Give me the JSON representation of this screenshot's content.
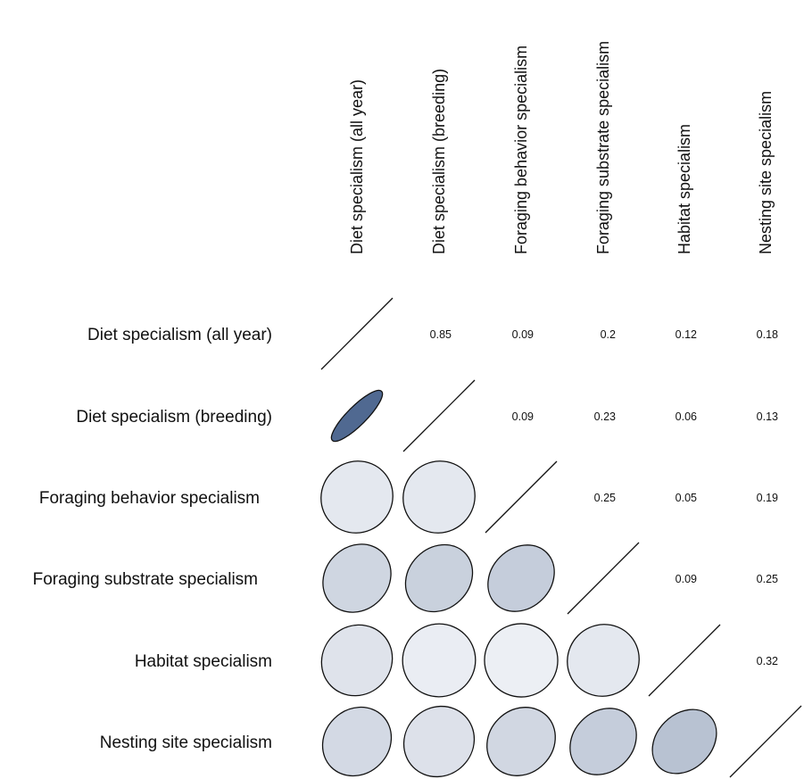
{
  "chart_data": {
    "type": "heatmap",
    "variables": [
      "Diet specialism (all year)",
      "Diet specialism (breeding)",
      "Foraging behavior specialism",
      "Foraging substrate specialism",
      "Habitat specialism",
      "Nesting site specialism"
    ],
    "upper_values": [
      [
        null,
        "0.85",
        "0.09",
        "0.2",
        "0.12",
        "0.18"
      ],
      [
        null,
        null,
        "0.09",
        "0.23",
        "0.06",
        "0.13"
      ],
      [
        null,
        null,
        null,
        "0.25",
        "0.05",
        "0.19"
      ],
      [
        null,
        null,
        null,
        null,
        "0.09",
        "0.25"
      ],
      [
        null,
        null,
        null,
        null,
        null,
        "0.32"
      ],
      [
        null,
        null,
        null,
        null,
        null,
        null
      ]
    ],
    "correlations": [
      [
        1,
        0.85,
        0.09,
        0.2,
        0.12,
        0.18
      ],
      [
        0.85,
        1,
        0.09,
        0.23,
        0.06,
        0.13
      ],
      [
        0.09,
        0.09,
        1,
        0.25,
        0.05,
        0.19
      ],
      [
        0.2,
        0.23,
        0.25,
        1,
        0.09,
        0.25
      ],
      [
        0.12,
        0.06,
        0.05,
        0.09,
        1,
        0.32
      ],
      [
        0.18,
        0.13,
        0.19,
        0.25,
        0.32,
        1
      ]
    ],
    "lower_triangle": "ellipses",
    "upper_triangle": "numbers",
    "diagonal": "slash lines",
    "colors": {
      "ellipse_low": "#f6f7fa",
      "ellipse_high": "#33507e",
      "stroke": "#111111"
    }
  }
}
